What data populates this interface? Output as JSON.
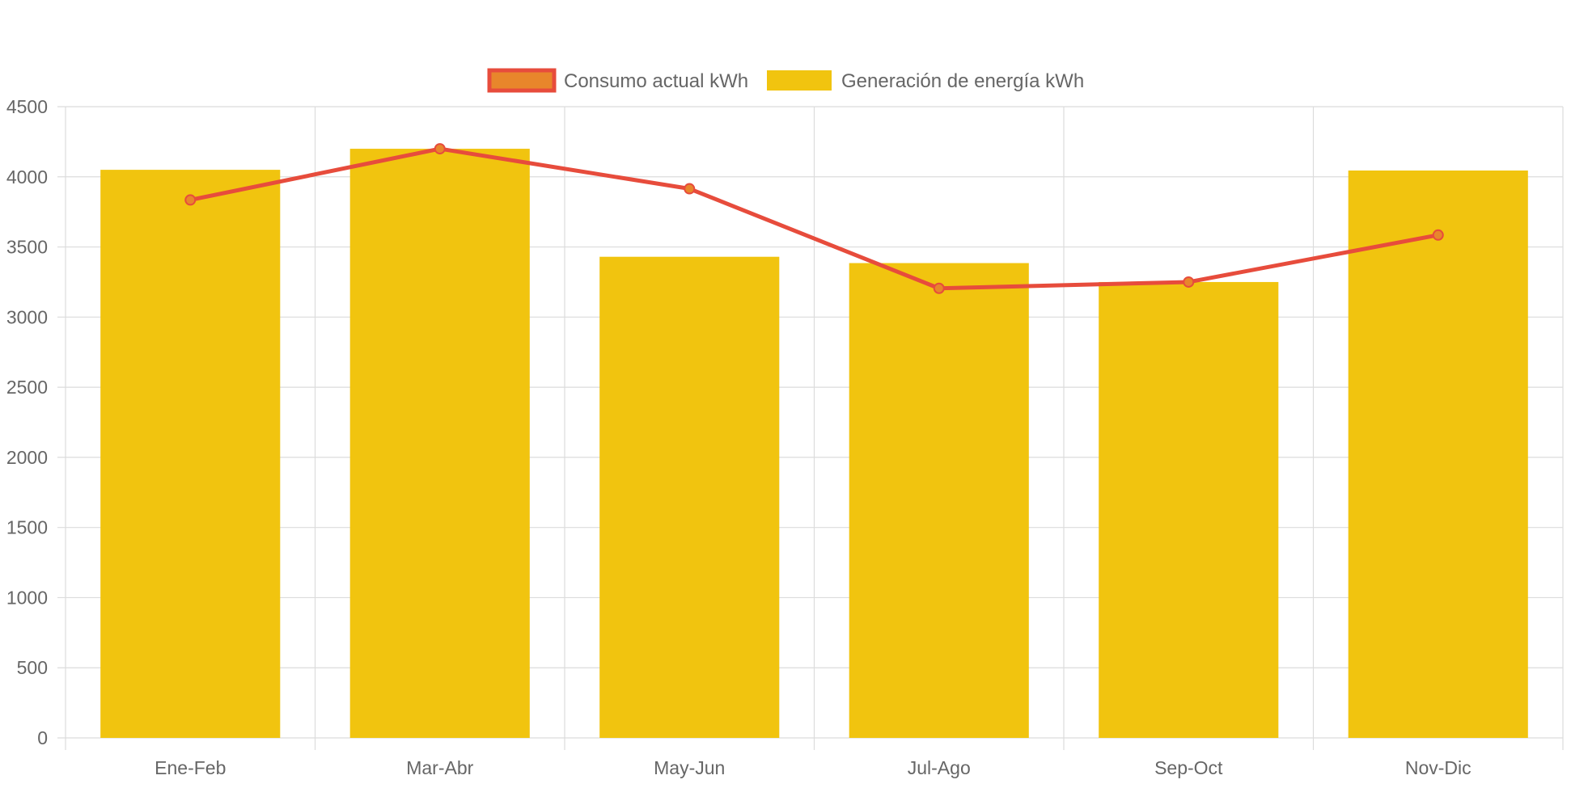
{
  "legend": {
    "items": [
      {
        "label": "Consumo actual kWh",
        "swatch_fill": "#e8862b",
        "swatch_border": "#e74c3c"
      },
      {
        "label": "Generación de energía kWh",
        "swatch_fill": "#f1c40f",
        "swatch_border": "#f1c40f"
      }
    ]
  },
  "colors": {
    "bar": "#f1c40f",
    "line": "#e74c3c",
    "point_fill": "#e8862b",
    "grid": "#dcdcdc",
    "axis_text": "#666666"
  },
  "chart_data": {
    "type": "bar",
    "categories": [
      "Ene-Feb",
      "Mar-Abr",
      "May-Jun",
      "Jul-Ago",
      "Sep-Oct",
      "Nov-Dic"
    ],
    "series": [
      {
        "name": "Generación de energía kWh",
        "type": "bar",
        "values": [
          4050,
          4200,
          3430,
          3385,
          3250,
          4045
        ]
      },
      {
        "name": "Consumo actual kWh",
        "type": "line",
        "values": [
          3835,
          4200,
          3915,
          3205,
          3250,
          3585
        ]
      }
    ],
    "ylim": [
      0,
      4500
    ],
    "yticks": [
      "0",
      "500",
      "1000",
      "1500",
      "2000",
      "2500",
      "3000",
      "3500",
      "4000",
      "4500"
    ],
    "grid": true,
    "legend_position": "top-center",
    "title": "",
    "xlabel": "",
    "ylabel": ""
  }
}
